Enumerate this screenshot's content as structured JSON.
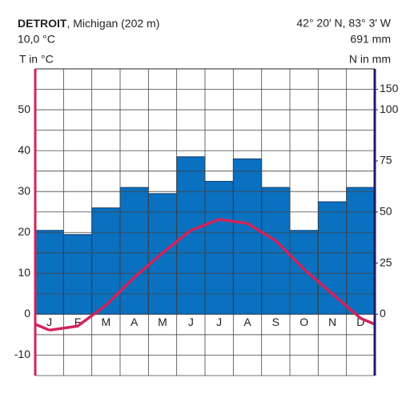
{
  "chart_data": {
    "type": "climate",
    "station": "DETROIT",
    "location": ", Michigan (202 m)",
    "mean_temperature": "10,0 °C",
    "coordinates": "42° 20′ N, 83° 3′ W",
    "annual_precipitation": "691 mm",
    "y_label": "T in °C",
    "y2_label": "N in mm",
    "categories": [
      "J",
      "F",
      "M",
      "A",
      "M",
      "J",
      "J",
      "A",
      "S",
      "O",
      "N",
      "D"
    ],
    "series": [
      {
        "name": "N in mm",
        "type": "bar",
        "axis": "y2",
        "color": "#0a70c0",
        "values": [
          41,
          39,
          52,
          62,
          59,
          77,
          65,
          76,
          62,
          41,
          55,
          62
        ]
      },
      {
        "name": "T in °C",
        "type": "line",
        "color": "#d0245a",
        "values": [
          -3.9,
          -2.9,
          2.2,
          9,
          15,
          20.5,
          23.2,
          22.2,
          18,
          11,
          5,
          -1
        ]
      }
    ],
    "ylim": [
      -15,
      60
    ],
    "yticks": [
      -10,
      0,
      10,
      20,
      30,
      40,
      50
    ],
    "y_minor_ticks": [
      -15,
      -5,
      5,
      15,
      25,
      35,
      45,
      55
    ],
    "y2lim": [
      -30,
      200
    ],
    "y2_scale_break": 100,
    "y2ticks": [
      0,
      25,
      50,
      75,
      100,
      150
    ],
    "y_axis_color": "#d0245a",
    "y2_axis_color": "#1e1a6e",
    "grid": true
  }
}
